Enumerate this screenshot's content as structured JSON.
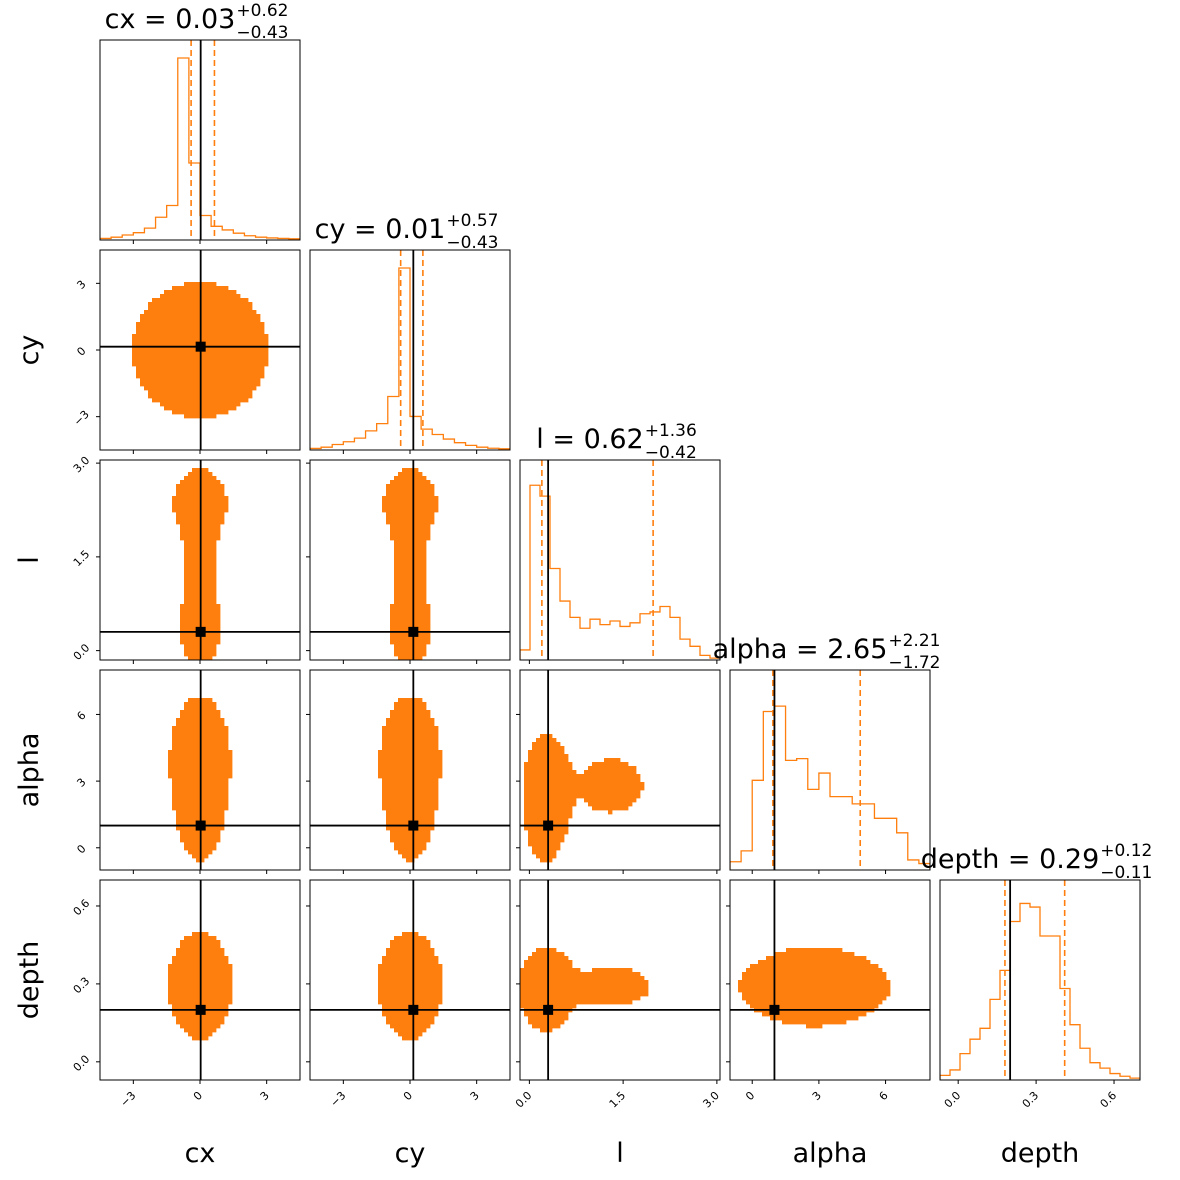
{
  "chart_data": {
    "type": "corner",
    "color": "#ff7f0e",
    "truth_color": "#000000",
    "parameters": [
      {
        "name": "cx",
        "label": "cx",
        "range": [
          -4.5,
          4.5
        ],
        "truth": 0.03,
        "ticks": [
          {
            "value": -3,
            "label": "−3"
          },
          {
            "value": 0,
            "label": "0"
          },
          {
            "value": 3,
            "label": "3"
          }
        ],
        "summary": {
          "value": "0.03",
          "plus": "+0.62",
          "minus": "−0.43",
          "lo": -0.4,
          "hi": 0.65
        },
        "histogram": [
          0.003,
          0.01,
          0.022,
          0.035,
          0.06,
          0.12,
          0.185,
          1.0,
          0.42,
          0.13,
          0.07,
          0.05,
          0.032,
          0.018,
          0.01,
          0.006,
          0.003,
          0.001
        ]
      },
      {
        "name": "cy",
        "label": "cy",
        "range": [
          -4.5,
          4.5
        ],
        "truth": 0.15,
        "ticks": [
          {
            "value": -3,
            "label": "−3"
          },
          {
            "value": 0,
            "label": "0"
          },
          {
            "value": 3,
            "label": "3"
          }
        ],
        "summary": {
          "value": "0.01",
          "plus": "+0.57",
          "minus": "−0.43",
          "lo": -0.42,
          "hi": 0.58
        },
        "histogram": [
          0.003,
          0.01,
          0.025,
          0.04,
          0.06,
          0.1,
          0.14,
          0.29,
          1.0,
          0.18,
          0.11,
          0.08,
          0.055,
          0.035,
          0.02,
          0.01,
          0.004,
          0.001
        ]
      },
      {
        "name": "l",
        "label": "l",
        "range": [
          -0.15,
          3.05
        ],
        "truth": 0.3,
        "ticks": [
          {
            "value": 0.0,
            "label": "0.0"
          },
          {
            "value": 1.5,
            "label": "1.5"
          },
          {
            "value": 3.0,
            "label": "3.0"
          }
        ],
        "summary": {
          "value": "0.62",
          "plus": "+1.36",
          "minus": "−0.42",
          "lo": 0.2,
          "hi": 1.98
        },
        "histogram": [
          0.05,
          0.96,
          0.9,
          0.5,
          0.32,
          0.23,
          0.17,
          0.22,
          0.19,
          0.21,
          0.18,
          0.2,
          0.25,
          0.26,
          0.29,
          0.23,
          0.11,
          0.07,
          0.02,
          0.005
        ]
      },
      {
        "name": "alpha",
        "label": "alpha",
        "range": [
          -1.0,
          8.0
        ],
        "truth": 1.0,
        "ticks": [
          {
            "value": 0,
            "label": "0"
          },
          {
            "value": 3,
            "label": "3"
          },
          {
            "value": 6,
            "label": "6"
          }
        ],
        "summary": {
          "value": "2.65",
          "plus": "+2.21",
          "minus": "−1.72",
          "lo": 0.93,
          "hi": 4.86
        },
        "histogram": [
          0.04,
          0.1,
          0.49,
          0.87,
          0.9,
          0.6,
          0.61,
          0.44,
          0.53,
          0.4,
          0.4,
          0.36,
          0.36,
          0.28,
          0.28,
          0.2,
          0.05,
          0.03
        ]
      },
      {
        "name": "depth",
        "label": "depth",
        "range": [
          -0.07,
          0.7
        ],
        "truth": 0.2,
        "ticks": [
          {
            "value": 0.0,
            "label": "0.0"
          },
          {
            "value": 0.3,
            "label": "0.3"
          },
          {
            "value": 0.6,
            "label": "0.6"
          }
        ],
        "summary": {
          "value": "0.29",
          "plus": "+0.12",
          "minus": "−0.11",
          "lo": 0.18,
          "hi": 0.41
        },
        "histogram": [
          0.02,
          0.05,
          0.14,
          0.22,
          0.28,
          0.44,
          0.6,
          0.87,
          0.97,
          0.95,
          0.79,
          0.79,
          0.5,
          0.3,
          0.17,
          0.09,
          0.06,
          0.03,
          0.015,
          0.005
        ]
      }
    ],
    "density_blobs": {
      "0,1": [
        {
          "mx": 0.0,
          "my": 0.0,
          "sx": 1.55,
          "sy": 1.55,
          "w": 1.0
        }
      ],
      "0,2": [
        {
          "mx": 0.0,
          "my": 0.35,
          "sx": 0.42,
          "sy": 0.28,
          "w": 1.0
        },
        {
          "mx": 0.0,
          "my": 1.5,
          "sx": 0.62,
          "sy": 1.0,
          "w": 0.3
        },
        {
          "mx": 0.0,
          "my": 2.4,
          "sx": 1.5,
          "sy": 0.35,
          "w": 0.18
        }
      ],
      "0,3": [
        {
          "mx": 0.0,
          "my": 1.5,
          "sx": 0.45,
          "sy": 1.0,
          "w": 1.0
        },
        {
          "mx": 0.0,
          "my": 3.8,
          "sx": 1.0,
          "sy": 2.2,
          "w": 0.45
        }
      ],
      "0,4": [
        {
          "mx": 0.0,
          "my": 0.29,
          "sx": 0.55,
          "sy": 0.09,
          "w": 1.0
        },
        {
          "mx": 0.0,
          "my": 0.3,
          "sx": 1.55,
          "sy": 0.16,
          "w": 0.22
        }
      ],
      "1,2": [
        {
          "mx": 0.0,
          "my": 0.35,
          "sx": 0.42,
          "sy": 0.28,
          "w": 1.0
        },
        {
          "mx": 0.0,
          "my": 1.5,
          "sx": 0.62,
          "sy": 1.0,
          "w": 0.3
        },
        {
          "mx": 0.0,
          "my": 2.4,
          "sx": 1.5,
          "sy": 0.35,
          "w": 0.18
        }
      ],
      "1,3": [
        {
          "mx": 0.0,
          "my": 1.5,
          "sx": 0.45,
          "sy": 1.0,
          "w": 1.0
        },
        {
          "mx": 0.0,
          "my": 3.8,
          "sx": 1.0,
          "sy": 2.2,
          "w": 0.45
        }
      ],
      "1,4": [
        {
          "mx": 0.0,
          "my": 0.29,
          "sx": 0.55,
          "sy": 0.09,
          "w": 1.0
        },
        {
          "mx": 0.0,
          "my": 0.3,
          "sx": 1.55,
          "sy": 0.16,
          "w": 0.22
        }
      ],
      "2,3": [
        {
          "mx": 0.25,
          "my": 2.2,
          "sx": 0.17,
          "sy": 1.4,
          "w": 1.0
        },
        {
          "mx": 1.3,
          "my": 2.8,
          "sx": 0.85,
          "sy": 2.0,
          "w": 0.18
        }
      ],
      "2,4": [
        {
          "mx": 0.25,
          "my": 0.28,
          "sx": 0.2,
          "sy": 0.08,
          "w": 1.0
        },
        {
          "mx": 1.3,
          "my": 0.29,
          "sx": 0.85,
          "sy": 0.1,
          "w": 0.2
        }
      ],
      "3,4": [
        {
          "mx": 2.8,
          "my": 0.29,
          "sx": 1.6,
          "sy": 0.06,
          "w": 1.0
        },
        {
          "mx": 2.8,
          "my": 0.29,
          "sx": 2.1,
          "sy": 0.14,
          "w": 0.25
        }
      ]
    },
    "levels": [
      0.86,
      0.45,
      0.14
    ],
    "fill_colors": [
      "#ffdcbe",
      "#ffb97e",
      "#ff7f0e"
    ]
  }
}
